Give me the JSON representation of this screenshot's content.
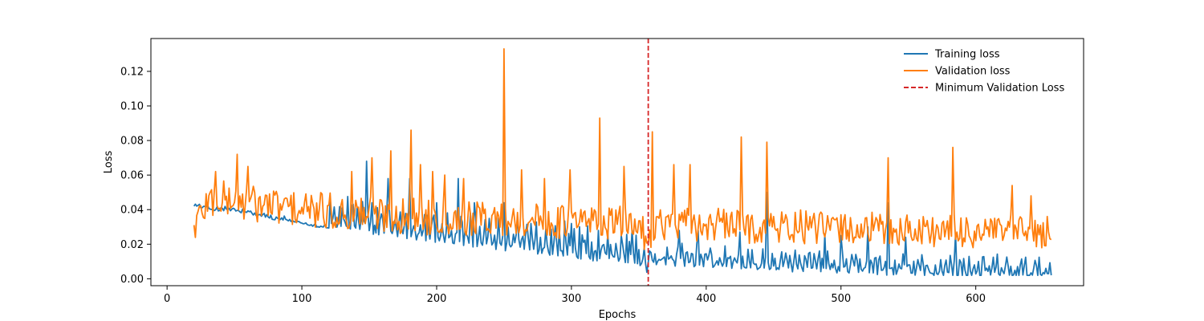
{
  "chart_data": {
    "type": "line",
    "xlabel": "Epochs",
    "ylabel": "Loss",
    "xlim": [
      -12,
      680
    ],
    "ylim": [
      -0.004,
      0.139
    ],
    "xticks": [
      0,
      100,
      200,
      300,
      400,
      500,
      600
    ],
    "yticks": [
      0.0,
      0.02,
      0.04,
      0.06,
      0.08,
      0.1,
      0.12
    ],
    "xtick_labels": [
      "0",
      "100",
      "200",
      "300",
      "400",
      "500",
      "600"
    ],
    "ytick_labels": [
      "0.00",
      "0.02",
      "0.04",
      "0.06",
      "0.08",
      "0.10",
      "0.12"
    ],
    "legend_position": "top-right",
    "legend_frame": false,
    "grid": false,
    "vline": {
      "name": "Minimum Validation Loss",
      "x": 357,
      "color": "#d62728",
      "style": "dashed"
    },
    "series": [
      {
        "name": "Training loss",
        "color": "#1f77b4",
        "points": [
          [
            20,
            0.046
          ],
          [
            30,
            0.044
          ],
          [
            40,
            0.043
          ],
          [
            50,
            0.043
          ],
          [
            60,
            0.041
          ],
          [
            70,
            0.04
          ],
          [
            80,
            0.038
          ],
          [
            90,
            0.037
          ],
          [
            100,
            0.036
          ],
          [
            110,
            0.034
          ],
          [
            120,
            0.033
          ],
          [
            130,
            0.032
          ],
          [
            140,
            0.031
          ],
          [
            150,
            0.03
          ],
          [
            160,
            0.029
          ],
          [
            170,
            0.028
          ],
          [
            180,
            0.027
          ],
          [
            190,
            0.026
          ],
          [
            200,
            0.025
          ],
          [
            210,
            0.024
          ],
          [
            220,
            0.023
          ],
          [
            230,
            0.022
          ],
          [
            240,
            0.021
          ],
          [
            250,
            0.02
          ],
          [
            260,
            0.019
          ],
          [
            270,
            0.018
          ],
          [
            280,
            0.018
          ],
          [
            290,
            0.017
          ],
          [
            300,
            0.016
          ],
          [
            310,
            0.015
          ],
          [
            320,
            0.014
          ],
          [
            330,
            0.014
          ],
          [
            340,
            0.013
          ],
          [
            350,
            0.012
          ],
          [
            357,
            0.006
          ],
          [
            360,
            0.012
          ],
          [
            370,
            0.012
          ],
          [
            380,
            0.011
          ],
          [
            390,
            0.011
          ],
          [
            400,
            0.011
          ],
          [
            410,
            0.01
          ],
          [
            420,
            0.01
          ],
          [
            430,
            0.009
          ],
          [
            440,
            0.009
          ],
          [
            450,
            0.009
          ],
          [
            460,
            0.008
          ],
          [
            470,
            0.008
          ],
          [
            480,
            0.008
          ],
          [
            490,
            0.008
          ],
          [
            500,
            0.007
          ],
          [
            510,
            0.007
          ],
          [
            520,
            0.007
          ],
          [
            530,
            0.006
          ],
          [
            540,
            0.006
          ],
          [
            550,
            0.006
          ],
          [
            560,
            0.006
          ],
          [
            570,
            0.005
          ],
          [
            580,
            0.005
          ],
          [
            590,
            0.005
          ],
          [
            600,
            0.005
          ],
          [
            610,
            0.005
          ],
          [
            620,
            0.005
          ],
          [
            630,
            0.004
          ],
          [
            640,
            0.004
          ],
          [
            650,
            0.004
          ],
          [
            656,
            0.006
          ]
        ],
        "spikes": [
          [
            148,
            0.068
          ],
          [
            164,
            0.058
          ],
          [
            180,
            0.058
          ],
          [
            200,
            0.044
          ],
          [
            216,
            0.058
          ],
          [
            228,
            0.044
          ],
          [
            250,
            0.044
          ],
          [
            270,
            0.032
          ],
          [
            300,
            0.032
          ],
          [
            320,
            0.028
          ],
          [
            345,
            0.028
          ],
          [
            380,
            0.028
          ],
          [
            394,
            0.028
          ],
          [
            425,
            0.027
          ],
          [
            445,
            0.05
          ],
          [
            488,
            0.026
          ],
          [
            500,
            0.025
          ],
          [
            520,
            0.03
          ],
          [
            535,
            0.044
          ],
          [
            548,
            0.024
          ],
          [
            585,
            0.026
          ]
        ]
      },
      {
        "name": "Validation loss",
        "color": "#ff7f0e",
        "points": [
          [
            20,
            0.03
          ],
          [
            30,
            0.045
          ],
          [
            40,
            0.046
          ],
          [
            50,
            0.045
          ],
          [
            60,
            0.044
          ],
          [
            70,
            0.043
          ],
          [
            80,
            0.042
          ],
          [
            90,
            0.041
          ],
          [
            100,
            0.04
          ],
          [
            110,
            0.039
          ],
          [
            120,
            0.039
          ],
          [
            130,
            0.038
          ],
          [
            140,
            0.038
          ],
          [
            150,
            0.038
          ],
          [
            160,
            0.037
          ],
          [
            170,
            0.037
          ],
          [
            180,
            0.037
          ],
          [
            190,
            0.036
          ],
          [
            200,
            0.036
          ],
          [
            210,
            0.036
          ],
          [
            220,
            0.035
          ],
          [
            230,
            0.035
          ],
          [
            240,
            0.035
          ],
          [
            250,
            0.034
          ],
          [
            260,
            0.034
          ],
          [
            270,
            0.034
          ],
          [
            280,
            0.033
          ],
          [
            290,
            0.033
          ],
          [
            300,
            0.033
          ],
          [
            310,
            0.033
          ],
          [
            320,
            0.033
          ],
          [
            330,
            0.032
          ],
          [
            340,
            0.032
          ],
          [
            350,
            0.032
          ],
          [
            357,
            0.02
          ],
          [
            360,
            0.032
          ],
          [
            370,
            0.032
          ],
          [
            380,
            0.031
          ],
          [
            390,
            0.031
          ],
          [
            400,
            0.031
          ],
          [
            410,
            0.031
          ],
          [
            420,
            0.031
          ],
          [
            430,
            0.03
          ],
          [
            440,
            0.03
          ],
          [
            450,
            0.03
          ],
          [
            460,
            0.03
          ],
          [
            470,
            0.03
          ],
          [
            480,
            0.029
          ],
          [
            490,
            0.029
          ],
          [
            500,
            0.029
          ],
          [
            510,
            0.029
          ],
          [
            520,
            0.029
          ],
          [
            530,
            0.028
          ],
          [
            540,
            0.028
          ],
          [
            550,
            0.028
          ],
          [
            560,
            0.028
          ],
          [
            570,
            0.028
          ],
          [
            580,
            0.027
          ],
          [
            590,
            0.027
          ],
          [
            600,
            0.027
          ],
          [
            610,
            0.027
          ],
          [
            620,
            0.027
          ],
          [
            630,
            0.027
          ],
          [
            640,
            0.026
          ],
          [
            650,
            0.026
          ],
          [
            656,
            0.027
          ]
        ],
        "spikes": [
          [
            52,
            0.072
          ],
          [
            60,
            0.065
          ],
          [
            36,
            0.062
          ],
          [
            137,
            0.062
          ],
          [
            152,
            0.07
          ],
          [
            166,
            0.074
          ],
          [
            181,
            0.086
          ],
          [
            188,
            0.066
          ],
          [
            197,
            0.062
          ],
          [
            206,
            0.06
          ],
          [
            220,
            0.058
          ],
          [
            250,
            0.133
          ],
          [
            263,
            0.063
          ],
          [
            280,
            0.058
          ],
          [
            299,
            0.063
          ],
          [
            321,
            0.093
          ],
          [
            339,
            0.065
          ],
          [
            360,
            0.085
          ],
          [
            376,
            0.066
          ],
          [
            388,
            0.066
          ],
          [
            426,
            0.082
          ],
          [
            445,
            0.079
          ],
          [
            535,
            0.07
          ],
          [
            583,
            0.076
          ],
          [
            627,
            0.054
          ],
          [
            641,
            0.048
          ]
        ]
      }
    ]
  }
}
